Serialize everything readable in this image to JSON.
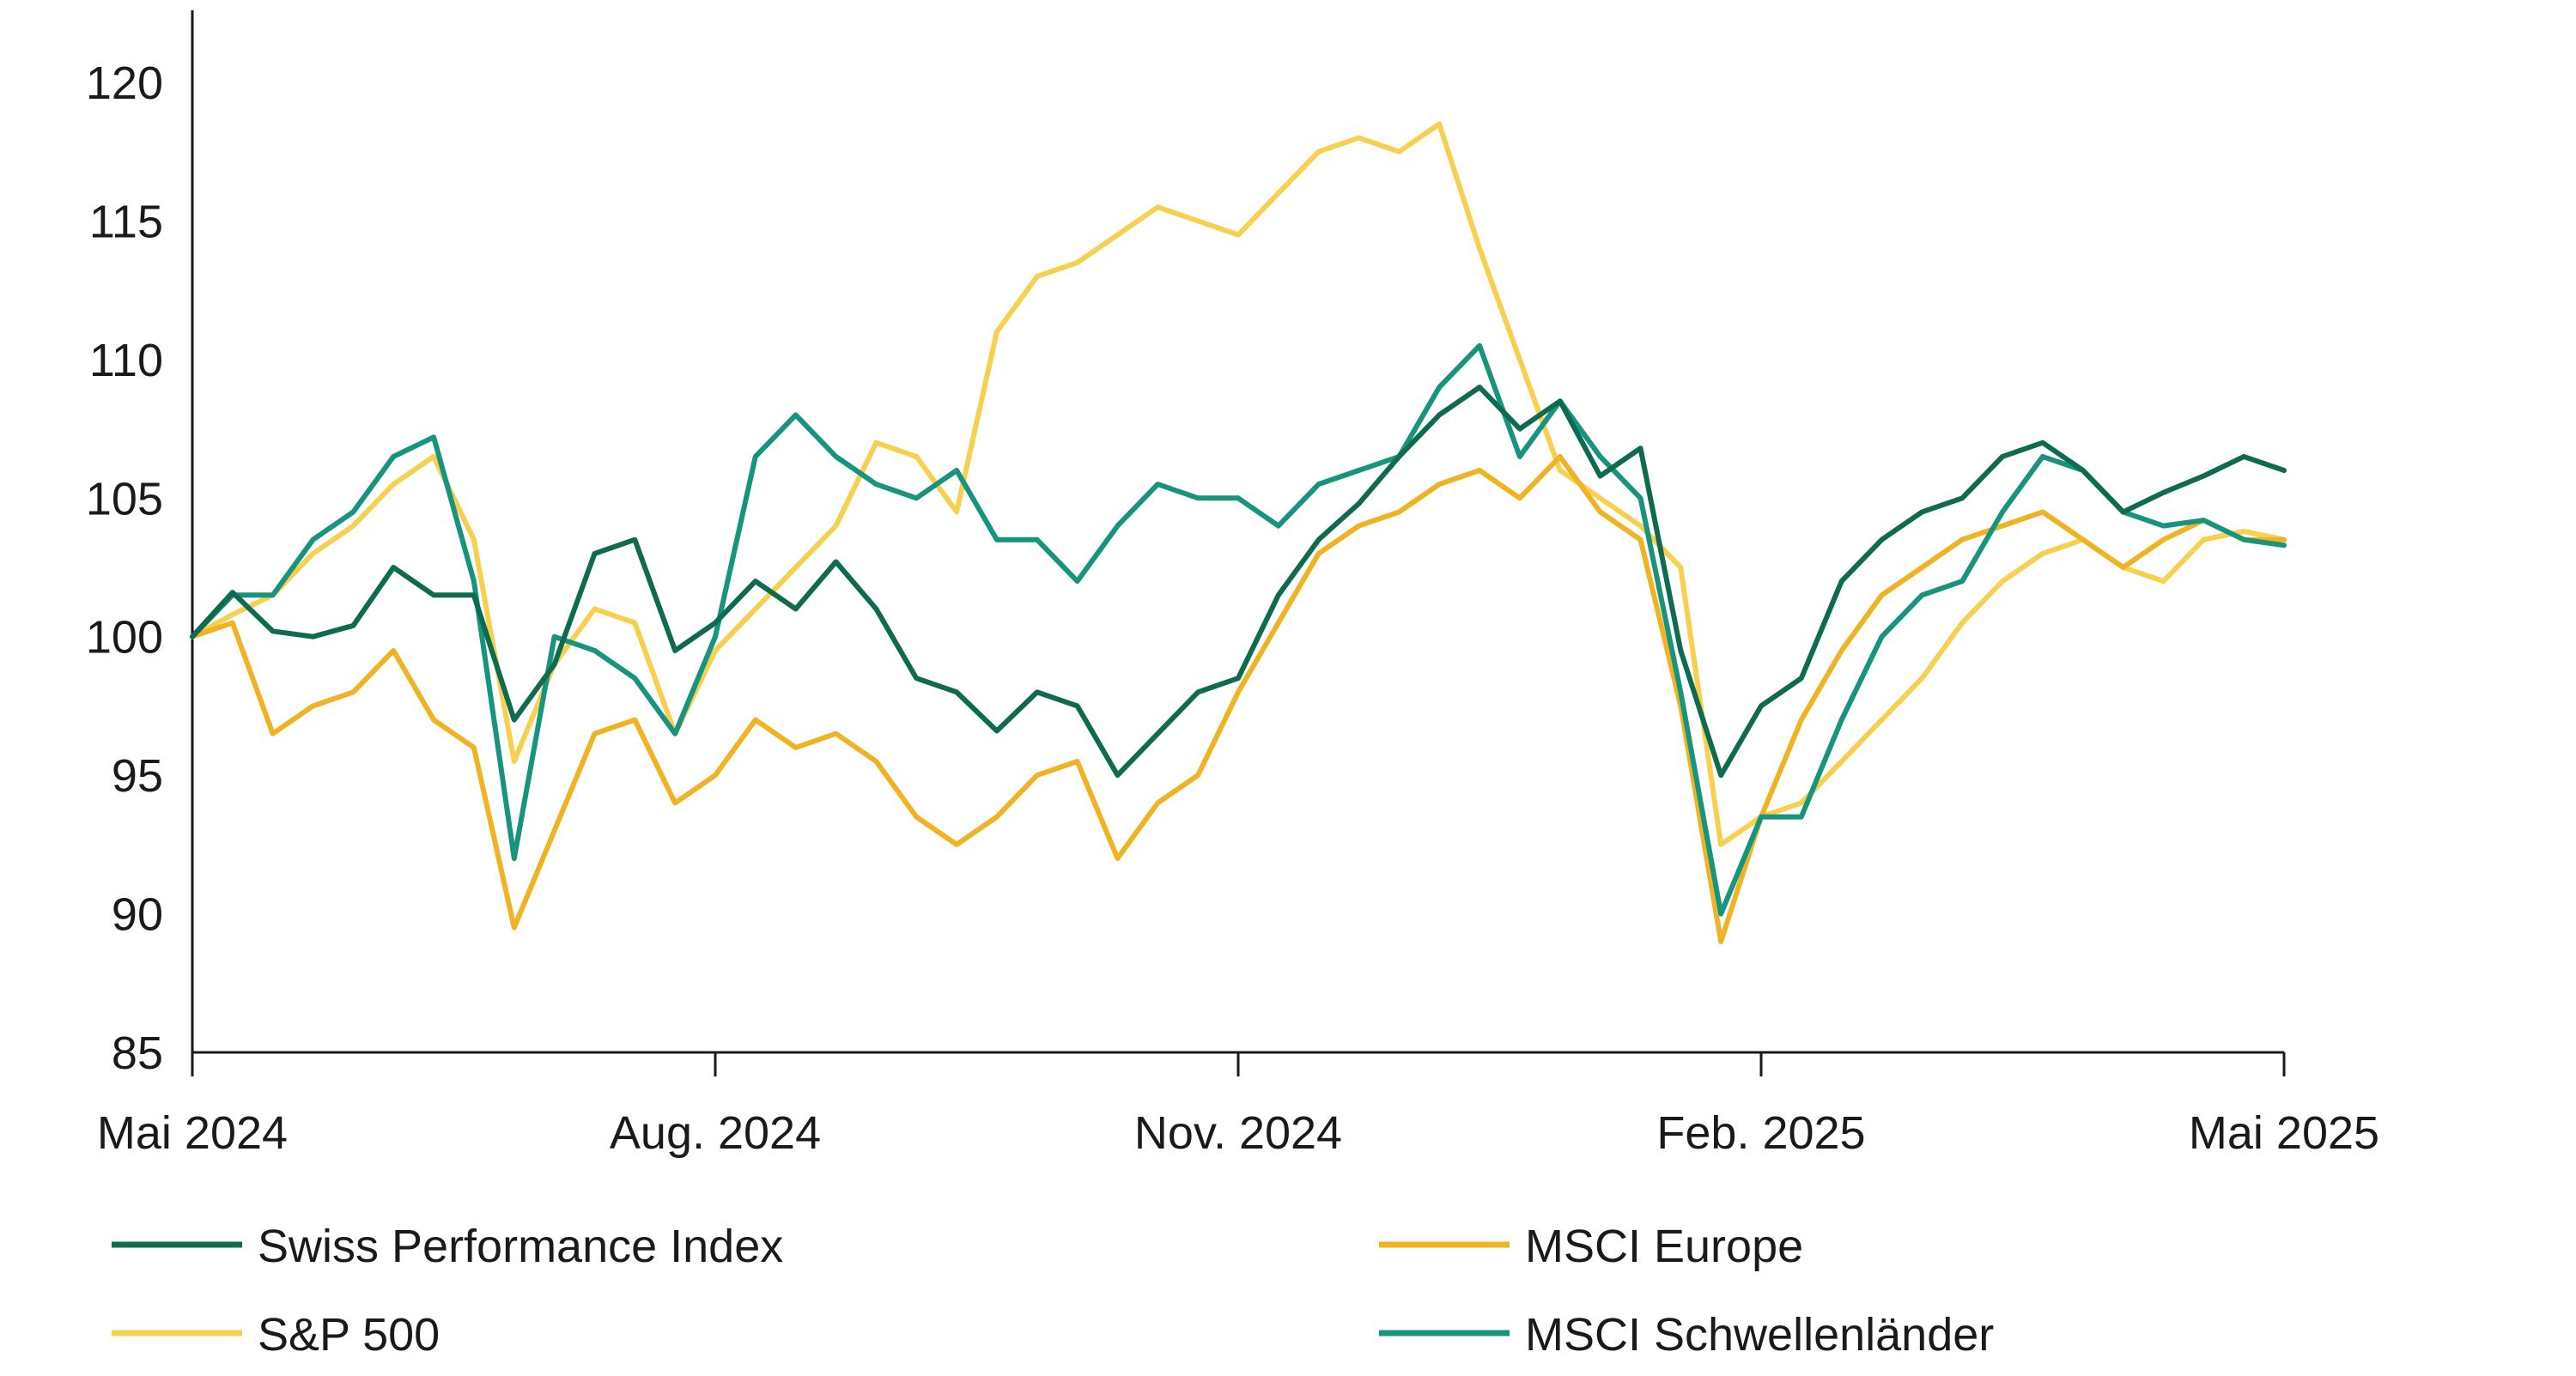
{
  "chart_data": {
    "type": "line",
    "title": "",
    "xlabel": "",
    "ylabel": "",
    "ylim": [
      85,
      121
    ],
    "yticks": [
      85,
      90,
      95,
      100,
      105,
      110,
      115,
      120
    ],
    "xticks": [
      "Mai 2024",
      "Aug. 2024",
      "Nov. 2024",
      "Feb. 2025",
      "Mai 2025"
    ],
    "x_unit": "weeks since Mai 2024 (0 = Mai 2024, 52 = Mai 2025)",
    "xlim": [
      0,
      52
    ],
    "grid": false,
    "legend_position": "bottom",
    "series": [
      {
        "name": "Swiss Performance Index",
        "color": "#0f6b4f",
        "x": [
          0,
          1,
          2,
          3,
          4,
          5,
          6,
          7,
          8,
          9,
          10,
          11,
          12,
          13,
          14,
          15,
          16,
          17,
          18,
          19,
          20,
          21,
          22,
          23,
          24,
          25,
          26,
          27,
          28,
          29,
          30,
          31,
          32,
          33,
          34,
          35,
          36,
          37,
          38,
          39,
          40,
          41,
          42,
          43,
          44,
          45,
          46,
          47,
          48,
          49,
          50,
          51,
          52
        ],
        "values": [
          100,
          101.6,
          100.2,
          100,
          100.4,
          102.5,
          101.5,
          101.5,
          97,
          99,
          103,
          103.5,
          99.5,
          100.5,
          102,
          101,
          102.7,
          101,
          98.5,
          98,
          96.6,
          98,
          97.5,
          95,
          96.5,
          98,
          98.5,
          101.5,
          103.5,
          104.8,
          106.5,
          108,
          109,
          107.5,
          108.5,
          105.8,
          106.8,
          99.5,
          95,
          97.5,
          98.5,
          102,
          103.5,
          104.5,
          105,
          106.5,
          107,
          106,
          104.5,
          105.2,
          105.8,
          106.5,
          106
        ]
      },
      {
        "name": "MSCI Europe",
        "color": "#efb324",
        "x": [
          0,
          1,
          2,
          3,
          4,
          5,
          6,
          7,
          8,
          9,
          10,
          11,
          12,
          13,
          14,
          15,
          16,
          17,
          18,
          19,
          20,
          21,
          22,
          23,
          24,
          25,
          26,
          27,
          28,
          29,
          30,
          31,
          32,
          33,
          34,
          35,
          36,
          37,
          38,
          39,
          40,
          41,
          42,
          43,
          44,
          45,
          46,
          47,
          48,
          49,
          50,
          51,
          52
        ],
        "values": [
          100,
          100.5,
          96.5,
          97.5,
          98,
          99.5,
          97,
          96,
          89.5,
          93,
          96.5,
          97,
          94,
          95,
          97,
          96,
          96.5,
          95.5,
          93.5,
          92.5,
          93.5,
          95,
          95.5,
          92,
          94,
          95,
          98,
          100.5,
          103,
          104,
          104.5,
          105.5,
          106,
          105,
          106.5,
          104.5,
          103.5,
          97.5,
          89,
          93.5,
          97,
          99.5,
          101.5,
          102.5,
          103.5,
          104,
          104.5,
          103.5,
          102.5,
          103.5,
          104.2,
          103.5,
          103.5
        ]
      },
      {
        "name": "S&P 500",
        "color": "#f6d04e",
        "x": [
          0,
          1,
          2,
          3,
          4,
          5,
          6,
          7,
          8,
          9,
          10,
          11,
          12,
          13,
          14,
          15,
          16,
          17,
          18,
          19,
          20,
          21,
          22,
          23,
          24,
          25,
          26,
          27,
          28,
          29,
          30,
          31,
          32,
          33,
          34,
          35,
          36,
          37,
          38,
          39,
          40,
          41,
          42,
          43,
          44,
          45,
          46,
          47,
          48,
          49,
          50,
          51,
          52
        ],
        "values": [
          100,
          100.8,
          101.5,
          103,
          104,
          105.5,
          106.5,
          103.5,
          95.5,
          99,
          101,
          100.5,
          96.5,
          99.5,
          101,
          102.5,
          104,
          107,
          106.5,
          104.5,
          111,
          113,
          113.5,
          114.5,
          115.5,
          115,
          114.5,
          116,
          117.5,
          118,
          117.5,
          118.5,
          114,
          110,
          106,
          105,
          104,
          102.5,
          92.5,
          93.5,
          94,
          95.5,
          97,
          98.5,
          100.5,
          102,
          103,
          103.5,
          102.5,
          102,
          103.5,
          103.8,
          103.5
        ]
      },
      {
        "name": "MSCI Schwellenländer",
        "color": "#16947d",
        "x": [
          0,
          1,
          2,
          3,
          4,
          5,
          6,
          7,
          8,
          9,
          10,
          11,
          12,
          13,
          14,
          15,
          16,
          17,
          18,
          19,
          20,
          21,
          22,
          23,
          24,
          25,
          26,
          27,
          28,
          29,
          30,
          31,
          32,
          33,
          34,
          35,
          36,
          37,
          38,
          39,
          40,
          41,
          42,
          43,
          44,
          45,
          46,
          47,
          48,
          49,
          50,
          51,
          52
        ],
        "values": [
          100,
          101.5,
          101.5,
          103.5,
          104.5,
          106.5,
          107.2,
          102,
          92,
          100,
          99.5,
          98.5,
          96.5,
          100,
          106.5,
          108,
          106.5,
          105.5,
          105,
          106,
          103.5,
          103.5,
          102,
          104,
          105.5,
          105,
          105,
          104,
          105.5,
          106,
          106.5,
          109,
          110.5,
          106.5,
          108.5,
          106.5,
          105,
          98,
          90,
          93.5,
          93.5,
          97,
          100,
          101.5,
          102,
          104.5,
          106.5,
          106,
          104.5,
          104,
          104.2,
          103.5,
          103.3
        ]
      }
    ]
  }
}
